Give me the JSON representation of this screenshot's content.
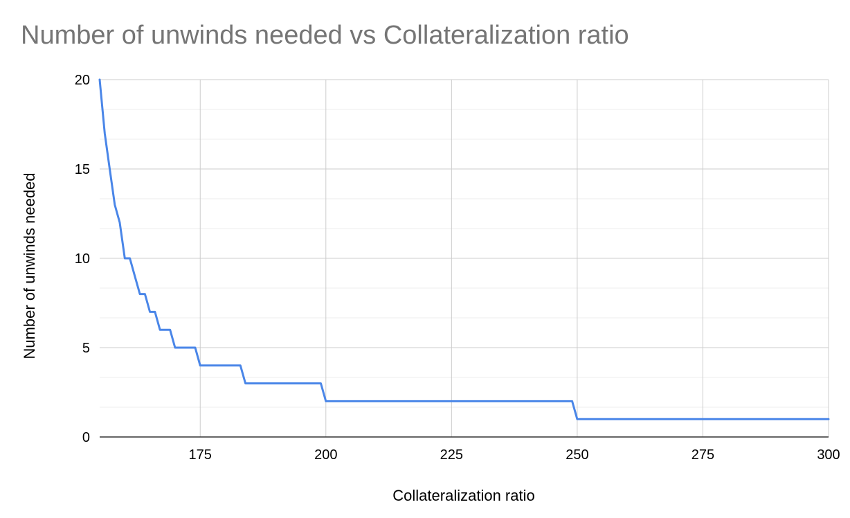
{
  "chart_data": {
    "type": "line",
    "title": "Number of unwinds needed vs Collateralization ratio",
    "xlabel": "Collateralization ratio",
    "ylabel": "Number of unwinds needed",
    "xlim": [
      155,
      300
    ],
    "ylim": [
      0,
      20
    ],
    "x_ticks": [
      175,
      200,
      225,
      250,
      275,
      300
    ],
    "y_ticks": [
      0,
      5,
      10,
      15,
      20
    ],
    "grid": true,
    "legend": "none",
    "line_color": "#4a86e8",
    "series": [
      {
        "x": [
          155,
          156,
          157,
          158,
          159,
          160,
          161,
          162,
          163,
          164,
          165,
          166,
          167,
          168,
          169,
          170,
          171,
          172,
          173,
          174,
          175,
          176,
          177,
          178,
          179,
          180,
          181,
          182,
          183,
          184,
          185,
          190,
          195,
          199,
          200,
          205,
          210,
          220,
          230,
          240,
          249,
          250,
          260,
          270,
          280,
          290,
          300
        ],
        "values": [
          20,
          17,
          15,
          13,
          12,
          10,
          10,
          9,
          8,
          8,
          7,
          7,
          6,
          6,
          6,
          5,
          5,
          5,
          5,
          5,
          4,
          4,
          4,
          4,
          4,
          4,
          4,
          4,
          4,
          3,
          3,
          3,
          3,
          3,
          2,
          2,
          2,
          2,
          2,
          2,
          2,
          1,
          1,
          1,
          1,
          1,
          1
        ]
      }
    ]
  }
}
